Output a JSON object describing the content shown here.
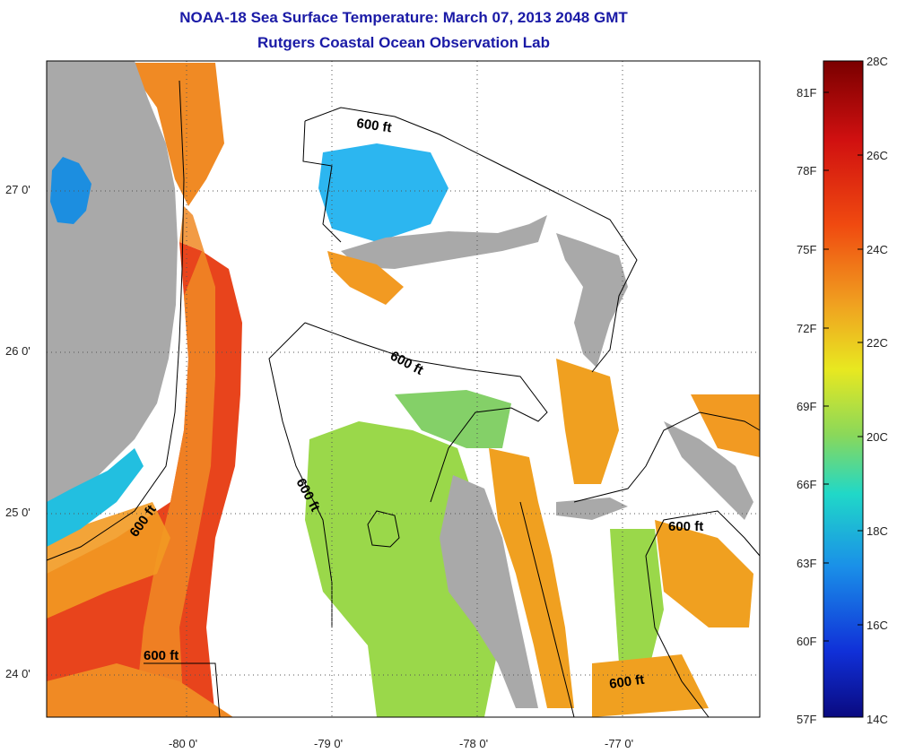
{
  "title": {
    "line1": "NOAA-18 Sea Surface Temperature:  March 07, 2013 2048 GMT",
    "line2": "Rutgers Coastal Ocean Observation Lab"
  },
  "map": {
    "lat_labels": [
      "27 0'",
      "26 0'",
      "25 0'",
      "24 0'"
    ],
    "lon_labels": [
      "-80 0'",
      "-79 0'",
      "-78 0'",
      "-77 0'"
    ],
    "contour_label": "600 ft",
    "colors": {
      "land": "#a9a9a9",
      "cloud": "#ffffff",
      "warm": "#e8401a",
      "orange": "#f0a020",
      "green": "#9ad84a",
      "cyan": "#20c8e8"
    }
  },
  "colorbar": {
    "fahrenheit": [
      "81F",
      "78F",
      "75F",
      "72F",
      "69F",
      "66F",
      "63F",
      "60F",
      "57F"
    ],
    "celsius": [
      "28C",
      "26C",
      "24C",
      "22C",
      "20C",
      "18C",
      "16C",
      "14C"
    ]
  }
}
